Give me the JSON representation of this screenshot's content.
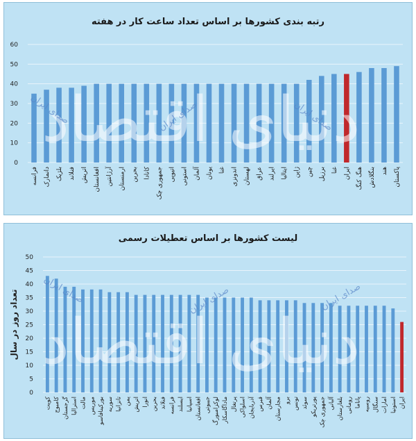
{
  "watermark": {
    "big": "دنیای اقتصاد",
    "small": "صدای ایران"
  },
  "colors": {
    "bar": "#5b9bd5",
    "highlight": "#c0282c",
    "grid": "#e9f4fb",
    "panel": "#bfe2f4"
  },
  "chart_data": [
    {
      "type": "bar",
      "title": "رتبه بندی کشورها بر اساس تعداد ساعت کار در هفته",
      "xlabel": "",
      "ylabel": "",
      "ylim": [
        0,
        60
      ],
      "yticks": [
        0,
        10,
        20,
        30,
        40,
        50,
        60
      ],
      "grid": true,
      "highlight": "ایران",
      "categories": [
        "فرانسه",
        "دانمارک",
        "بلژیک",
        "فنلاند",
        "اتریش",
        "افغانستان",
        "آرژانتین",
        "ارمنستان",
        "بحرین",
        "کانادا",
        "جمهوری چک",
        "اتیوپی",
        "استونی",
        "آلمان",
        "یونان",
        "غنا",
        "اندونزی",
        "لهستان",
        "عراق",
        "ایرلند",
        "ایتالیا",
        "ژاپن",
        "چین",
        "برزیل",
        "غنا",
        "ایران",
        "هنگ کنگ",
        "بنگلادش",
        "هند",
        "پاکستان"
      ],
      "values": [
        35,
        37,
        38,
        38,
        39,
        40,
        40,
        40,
        40,
        40,
        40,
        40,
        40,
        40,
        40,
        40,
        40,
        40,
        40,
        40,
        40,
        40,
        42,
        44,
        45,
        45,
        46,
        48,
        48,
        49
      ]
    },
    {
      "type": "bar",
      "title": "لیست کشورها بر اساس تعطیلات رسمی",
      "xlabel": "",
      "ylabel": "تعداد روز در سال",
      "ylim": [
        0,
        50
      ],
      "yticks": [
        0,
        5,
        10,
        15,
        20,
        25,
        30,
        35,
        40,
        45,
        50
      ],
      "grid": true,
      "highlight": "ایران",
      "categories": [
        "کویت",
        "کامبوج",
        "گرجستان",
        "استرالیا",
        "مالت",
        "موریس",
        "بورکینافاسو",
        "سوریه",
        "تانزانیا",
        "یمن",
        "اتریش",
        "انورا",
        "بحرین",
        "فنلاند",
        "فرانسه",
        "ایسلند",
        "اسپانیا",
        "افغانستان",
        "جیبوتی",
        "لوکزامبورگ",
        "ماداگاسکار",
        "پرتغال",
        "اسلواکی",
        "آذربایجان",
        "قبرس",
        "آلمان",
        "مجارستان",
        "برو",
        "تونس",
        "سوئد",
        "پورتریکو",
        "جمهوری چک",
        "آلبانی",
        "بلغارستان",
        "رومانی",
        "پاناما",
        "روسیه",
        "سنگال",
        "امارات",
        "استونیا",
        "ایران"
      ],
      "values": [
        43,
        42,
        39,
        39,
        38,
        38,
        38,
        37,
        37,
        37,
        36,
        36,
        36,
        36,
        36,
        36,
        36,
        36,
        35,
        35,
        35,
        35,
        35,
        35,
        34,
        34,
        34,
        34,
        34,
        33,
        33,
        33,
        33,
        32,
        32,
        32,
        32,
        32,
        32,
        31,
        26
      ]
    }
  ]
}
